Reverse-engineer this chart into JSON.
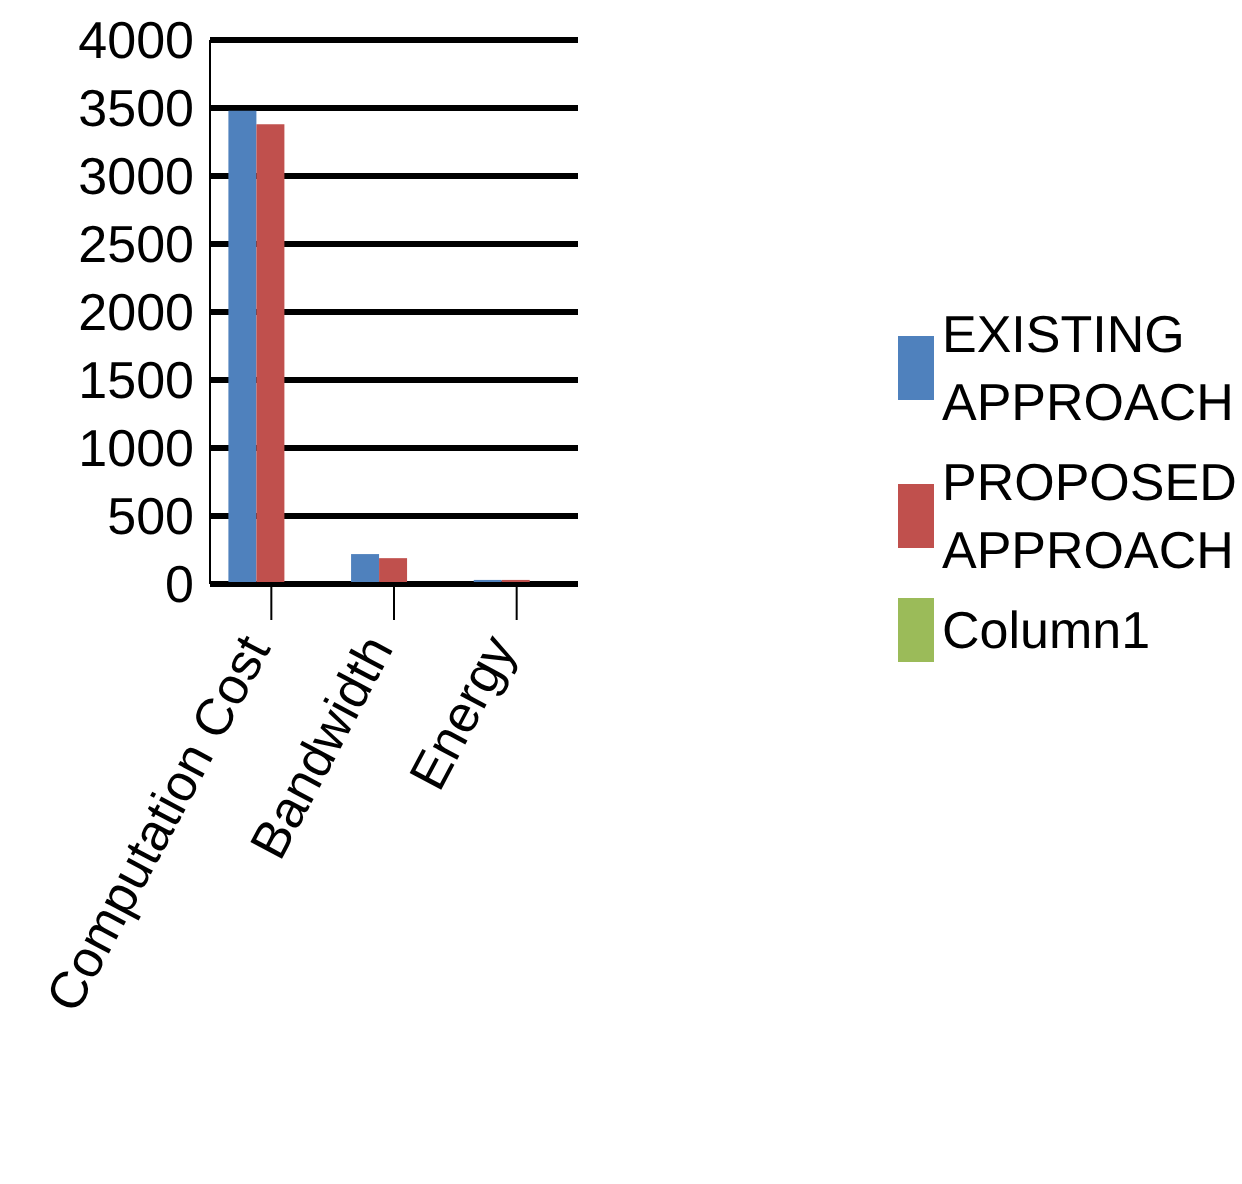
{
  "chart_data": {
    "type": "bar",
    "categories": [
      "Computation Cost",
      "Bandwidth",
      "Energy"
    ],
    "series": [
      {
        "name": "EXISTING APPROACH",
        "color": "#4f81bd",
        "values": [
          3480,
          220,
          30
        ]
      },
      {
        "name": "PROPOSED APPROACH",
        "color": "#c0504d",
        "values": [
          3380,
          190,
          30
        ]
      },
      {
        "name": "Column1",
        "color": "#9bbb59",
        "values": [
          null,
          null,
          null
        ]
      }
    ],
    "ylim": [
      0,
      4000
    ],
    "yticks": [
      0,
      500,
      1000,
      1500,
      2000,
      2500,
      3000,
      3500,
      4000
    ],
    "grid": "y",
    "legend": "right"
  }
}
